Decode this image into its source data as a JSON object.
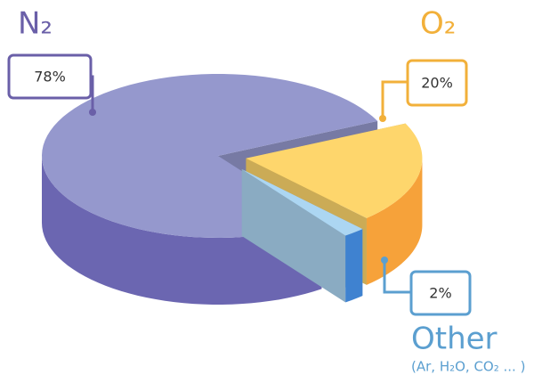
{
  "chart_data": {
    "type": "pie",
    "categories": [
      "N₂",
      "O₂",
      "Other"
    ],
    "values": [
      78,
      20,
      2
    ],
    "value_labels": [
      "78%",
      "20%",
      "2%"
    ],
    "colors": [
      "#9598cd",
      "#fed66c",
      "#acd6f2"
    ],
    "annotations": [
      "(Ar, H₂O, CO₂ ... )"
    ]
  }
}
